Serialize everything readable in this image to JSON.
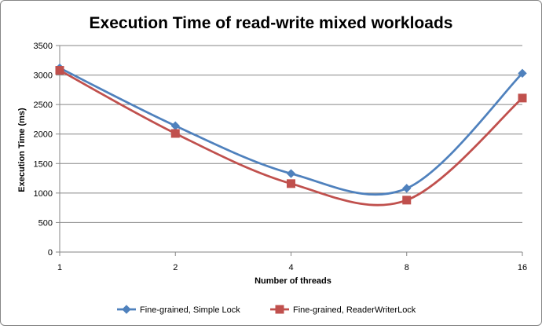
{
  "chart_data": {
    "type": "line",
    "title": "Execution Time of read-write mixed workloads",
    "xlabel": "Number of threads",
    "ylabel": "Execution Time (ms)",
    "categories": [
      "1",
      "2",
      "4",
      "8",
      "16"
    ],
    "ylim": [
      0,
      3500
    ],
    "yticks": [
      0,
      500,
      1000,
      1500,
      2000,
      2500,
      3000,
      3500
    ],
    "grid": true,
    "smooth": true,
    "legend_position": "bottom",
    "series": [
      {
        "name": "Fine-grained, Simple Lock",
        "values": [
          3120,
          2140,
          1330,
          1080,
          3030
        ],
        "color": "#4F81BD",
        "marker": "diamond"
      },
      {
        "name": "Fine-grained, ReaderWriterLock",
        "values": [
          3080,
          2010,
          1160,
          880,
          2610
        ],
        "color": "#C0504D",
        "marker": "square"
      }
    ]
  }
}
